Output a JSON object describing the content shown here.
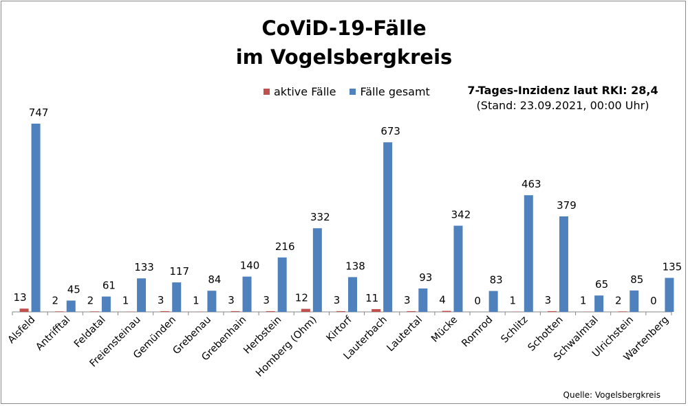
{
  "title_line1": "CoViD-19-Fälle",
  "title_line2": "im Vogelsbergkreis",
  "legend": {
    "active": "aktive Fälle",
    "total": "Fälle gesamt"
  },
  "inzidenz": {
    "line1": "7-Tages-Inzidenz laut RKI: 28,4",
    "line2": "(Stand: 23.09.2021, 00:00 Uhr)"
  },
  "source": "Quelle: Vogelsbergkreis",
  "colors": {
    "active": "#c0504d",
    "total": "#4f81bd",
    "axis": "#868686"
  },
  "chart_data": {
    "type": "bar",
    "categories": [
      "Alsfeld",
      "Antrifftal",
      "Feldatal",
      "Freiensteinau",
      "Gemünden",
      "Grebenau",
      "Grebenhain",
      "Herbstein",
      "Homberg (Ohm)",
      "Kirtorf",
      "Lauterbach",
      "Lautertal",
      "Mücke",
      "Romrod",
      "Schlitz",
      "Schotten",
      "Schwalmtal",
      "Ulrichstein",
      "Wartenberg"
    ],
    "series": [
      {
        "name": "aktive Fälle",
        "values": [
          13,
          2,
          2,
          1,
          3,
          1,
          3,
          3,
          12,
          3,
          11,
          3,
          4,
          0,
          1,
          3,
          1,
          2,
          0
        ]
      },
      {
        "name": "Fälle gesamt",
        "values": [
          747,
          45,
          61,
          133,
          117,
          84,
          140,
          216,
          332,
          138,
          673,
          93,
          342,
          83,
          463,
          379,
          65,
          85,
          135
        ]
      }
    ],
    "ylim": [
      0,
      747
    ],
    "title": "CoViD-19-Fälle im Vogelsbergkreis",
    "legend_position": "top-center",
    "grid": false
  }
}
